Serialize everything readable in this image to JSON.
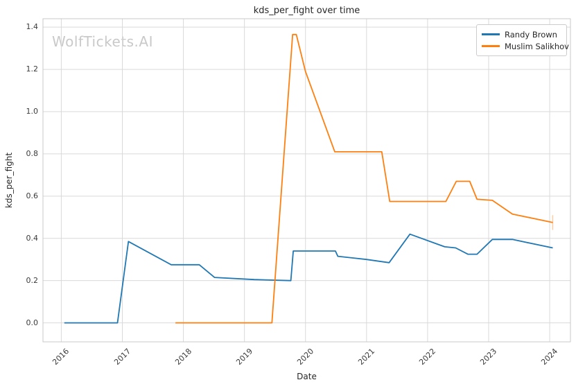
{
  "watermark": "WolfTickets.AI",
  "colors": {
    "series_blue": "#1f77b4",
    "series_orange": "#ff7f0e",
    "grid": "#d9d9d9",
    "spine": "#c9c9c9",
    "text": "#262626",
    "watermark": "#c9c9c9",
    "background": "#ffffff"
  },
  "chart_data": {
    "type": "line",
    "title": "kds_per_fight over time",
    "xlabel": "Date",
    "ylabel": "kds_per_fight",
    "grid": true,
    "legend_position": "upper right",
    "x_tick_labels": [
      2016,
      2017,
      2018,
      2019,
      2020,
      2021,
      2022,
      2023,
      2024
    ],
    "y_tick_values": [
      0.0,
      0.2,
      0.4,
      0.6,
      0.8,
      1.0,
      1.2,
      1.4
    ],
    "xlim": [
      2015.7,
      2024.34
    ],
    "ylim": [
      -0.09,
      1.44
    ],
    "series": [
      {
        "name": "Randy Brown",
        "color": "#1f77b4",
        "points": [
          [
            2016.05,
            0.0
          ],
          [
            2016.92,
            0.0
          ],
          [
            2017.1,
            0.385
          ],
          [
            2017.8,
            0.275
          ],
          [
            2018.26,
            0.275
          ],
          [
            2018.51,
            0.215
          ],
          [
            2019.16,
            0.205
          ],
          [
            2019.76,
            0.2
          ],
          [
            2019.8,
            0.34
          ],
          [
            2020.49,
            0.34
          ],
          [
            2020.53,
            0.315
          ],
          [
            2021.0,
            0.3
          ],
          [
            2021.37,
            0.285
          ],
          [
            2021.71,
            0.42
          ],
          [
            2022.28,
            0.36
          ],
          [
            2022.46,
            0.355
          ],
          [
            2022.66,
            0.325
          ],
          [
            2022.81,
            0.325
          ],
          [
            2023.06,
            0.395
          ],
          [
            2023.39,
            0.395
          ],
          [
            2024.05,
            0.355
          ]
        ]
      },
      {
        "name": "Muslim Salikhov",
        "color": "#ff7f0e",
        "points": [
          [
            2017.87,
            0.0
          ],
          [
            2019.45,
            0.0
          ],
          [
            2019.79,
            1.365
          ],
          [
            2019.85,
            1.365
          ],
          [
            2020.0,
            1.19
          ],
          [
            2020.48,
            0.81
          ],
          [
            2021.25,
            0.81
          ],
          [
            2021.38,
            0.575
          ],
          [
            2022.3,
            0.575
          ],
          [
            2022.47,
            0.67
          ],
          [
            2022.69,
            0.67
          ],
          [
            2022.81,
            0.585
          ],
          [
            2023.06,
            0.58
          ],
          [
            2023.39,
            0.515
          ],
          [
            2024.05,
            0.475
          ]
        ],
        "end_marker": {
          "x": 2024.05,
          "y": 0.475,
          "half_span": 0.035
        }
      }
    ]
  }
}
